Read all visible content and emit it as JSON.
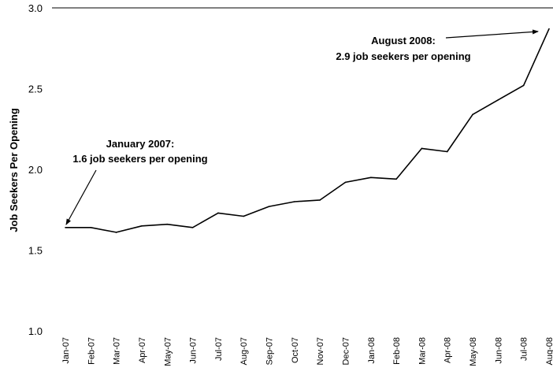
{
  "chart_data": {
    "type": "line",
    "title": "",
    "xlabel": "",
    "ylabel": "Job Seekers Per Opening",
    "ylim": [
      1.0,
      3.0
    ],
    "yticks": [
      "1.0",
      "1.5",
      "2.0",
      "2.5",
      "3.0"
    ],
    "grid": false,
    "categories": [
      "Jan-07",
      "Feb-07",
      "Mar-07",
      "Apr-07",
      "May-07",
      "Jun-07",
      "Jul-07",
      "Aug-07",
      "Sep-07",
      "Oct-07",
      "Nov-07",
      "Dec-07",
      "Jan-08",
      "Feb-08",
      "Mar-08",
      "Apr-08",
      "May-08",
      "Jun-08",
      "Jul-08",
      "Aug-08"
    ],
    "series": [
      {
        "values": [
          1.64,
          1.64,
          1.61,
          1.65,
          1.66,
          1.64,
          1.73,
          1.71,
          1.77,
          1.8,
          1.81,
          1.92,
          1.95,
          1.94,
          2.13,
          2.11,
          2.34,
          2.43,
          2.52,
          2.87
        ]
      }
    ],
    "annotations": [
      {
        "line1": "January 2007:",
        "line2": "1.6 job seekers per opening",
        "target_index": 0
      },
      {
        "line1": "August 2008:",
        "line2": "2.9 job seekers per opening",
        "target_index": 19
      }
    ],
    "colors": {
      "line": "#000000",
      "axis": "#000000"
    }
  }
}
